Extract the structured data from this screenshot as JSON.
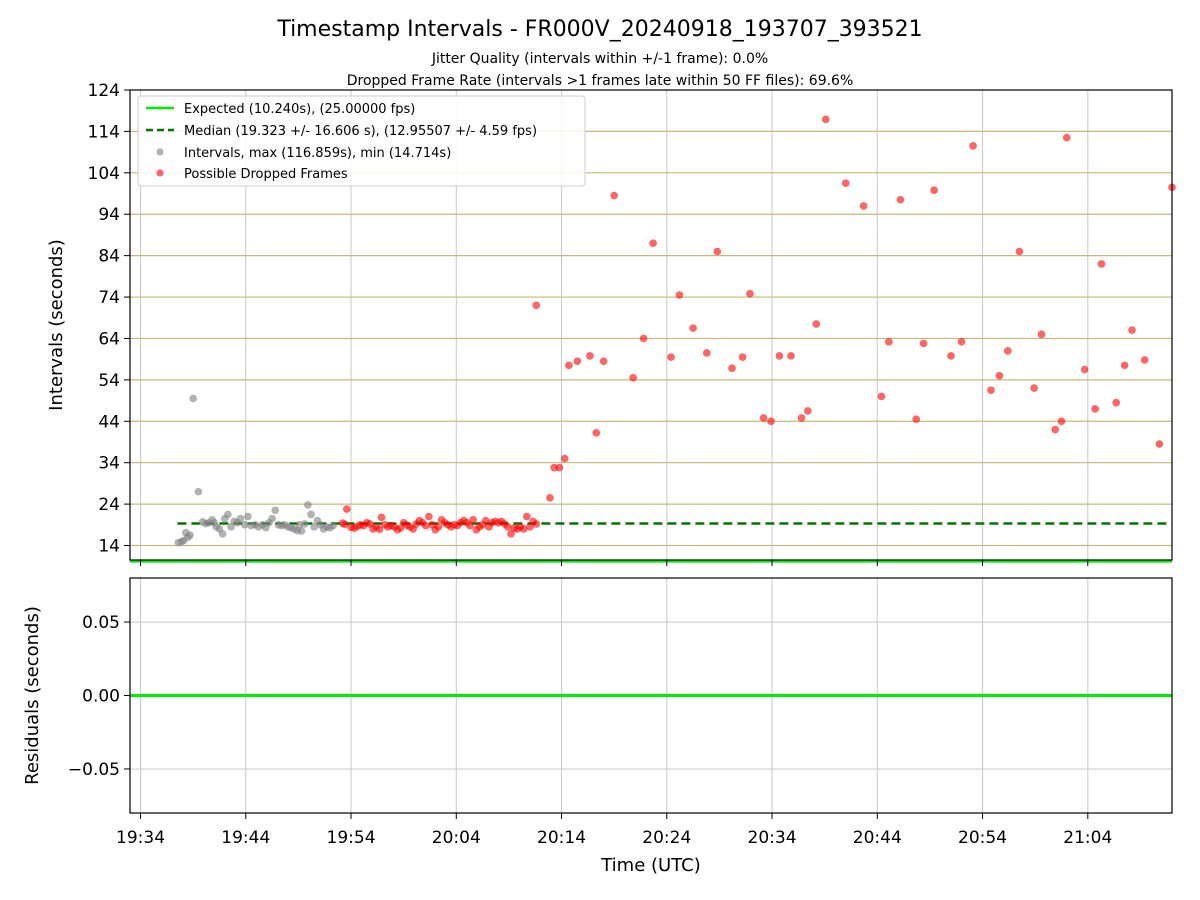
{
  "chart_data": [
    {
      "type": "scatter",
      "title": "Timestamp Intervals - FR000V_20240918_193707_393521",
      "subtitle_1": "Jitter Quality (intervals within +/-1 frame): 0.0%",
      "subtitle_2": "Dropped Frame Rate (intervals >1 frames late within 50 FF files): 69.6%",
      "xlabel": "",
      "ylabel": "Intervals (seconds)",
      "x_unit": "minutes since 19:34 UTC",
      "xlim": [
        -1,
        98
      ],
      "ylim": [
        10.5,
        124
      ],
      "yticks": [
        14,
        24,
        34,
        44,
        54,
        64,
        74,
        84,
        94,
        104,
        114,
        124
      ],
      "hlines_color": "#c8b878",
      "grid": "vertical",
      "legend_position": "top-left",
      "expected_line": {
        "y": 10.24,
        "color": "#00ee00",
        "label": "Expected (10.240s), (25.00000 fps)"
      },
      "median_line": {
        "y": 19.323,
        "color": "#007700",
        "label": "Median (19.323 +/- 16.606 s), (12.95507 +/- 4.59 fps)",
        "x_start": 3.5
      },
      "series": [
        {
          "name": "Intervals, max (116.859s), min (14.714s)",
          "color": "#808080",
          "points": [
            [
              3.6,
              14.7
            ],
            [
              3.9,
              14.9
            ],
            [
              4.1,
              15.2
            ],
            [
              4.3,
              17.1
            ],
            [
              4.5,
              16.0
            ],
            [
              4.7,
              16.5
            ],
            [
              5.0,
              49.5
            ],
            [
              5.5,
              27.0
            ],
            [
              5.9,
              19.7
            ],
            [
              6.2,
              19.3
            ],
            [
              6.5,
              19.5
            ],
            [
              6.8,
              20.2
            ],
            [
              7.0,
              19.5
            ],
            [
              7.2,
              18.5
            ],
            [
              7.5,
              18.0
            ],
            [
              7.8,
              16.8
            ],
            [
              8.0,
              20.5
            ],
            [
              8.3,
              21.5
            ],
            [
              8.6,
              18.5
            ],
            [
              8.9,
              19.8
            ],
            [
              9.2,
              19.5
            ],
            [
              9.5,
              20.5
            ],
            [
              9.9,
              19.0
            ],
            [
              10.2,
              21.0
            ],
            [
              10.5,
              18.8
            ],
            [
              10.9,
              19.0
            ],
            [
              11.2,
              18.5
            ],
            [
              11.6,
              19.0
            ],
            [
              11.9,
              18.3
            ],
            [
              12.2,
              19.5
            ],
            [
              12.5,
              20.5
            ],
            [
              12.8,
              22.5
            ],
            [
              13.1,
              19.0
            ],
            [
              13.4,
              18.8
            ],
            [
              13.7,
              19.0
            ],
            [
              14.0,
              18.5
            ],
            [
              14.3,
              18.3
            ],
            [
              14.6,
              18.0
            ],
            [
              14.9,
              17.6
            ],
            [
              15.1,
              19.0
            ],
            [
              15.3,
              17.5
            ],
            [
              15.6,
              19.2
            ],
            [
              15.9,
              23.8
            ],
            [
              16.2,
              21.5
            ],
            [
              16.5,
              18.5
            ],
            [
              16.8,
              20.0
            ],
            [
              17.1,
              19.0
            ],
            [
              17.4,
              18.0
            ],
            [
              17.7,
              18.5
            ],
            [
              18.0,
              18.3
            ],
            [
              18.3,
              18.8
            ]
          ]
        },
        {
          "name": "Possible Dropped Frames",
          "color": "#ff0000",
          "points": [
            [
              19.2,
              19.4
            ],
            [
              19.4,
              19.1
            ],
            [
              19.6,
              22.8
            ],
            [
              20.0,
              18.4
            ],
            [
              20.3,
              18.2
            ],
            [
              20.6,
              18.6
            ],
            [
              20.9,
              19.0
            ],
            [
              21.2,
              18.8
            ],
            [
              21.5,
              19.5
            ],
            [
              21.8,
              19.2
            ],
            [
              22.1,
              18.0
            ],
            [
              22.4,
              18.5
            ],
            [
              22.7,
              17.9
            ],
            [
              22.9,
              20.8
            ],
            [
              23.2,
              19.0
            ],
            [
              23.5,
              18.5
            ],
            [
              23.8,
              18.8
            ],
            [
              24.1,
              18.5
            ],
            [
              24.4,
              17.8
            ],
            [
              24.7,
              18.2
            ],
            [
              25.0,
              19.5
            ],
            [
              25.3,
              18.9
            ],
            [
              25.6,
              18.5
            ],
            [
              25.9,
              18.0
            ],
            [
              26.2,
              19.2
            ],
            [
              26.5,
              20.0
            ],
            [
              26.8,
              19.5
            ],
            [
              27.1,
              18.8
            ],
            [
              27.4,
              21.0
            ],
            [
              27.7,
              19.0
            ],
            [
              28.0,
              17.8
            ],
            [
              28.3,
              18.5
            ],
            [
              28.6,
              20.2
            ],
            [
              28.9,
              19.5
            ],
            [
              29.2,
              19.0
            ],
            [
              29.5,
              18.5
            ],
            [
              29.8,
              19.0
            ],
            [
              30.1,
              18.8
            ],
            [
              30.4,
              19.5
            ],
            [
              30.7,
              20.0
            ],
            [
              31.0,
              19.5
            ],
            [
              31.3,
              18.8
            ],
            [
              31.6,
              20.2
            ],
            [
              31.9,
              17.8
            ],
            [
              32.2,
              18.5
            ],
            [
              32.5,
              19.0
            ],
            [
              32.8,
              20.0
            ],
            [
              33.1,
              18.5
            ],
            [
              33.4,
              19.5
            ],
            [
              33.7,
              19.8
            ],
            [
              34.0,
              19.5
            ],
            [
              34.3,
              19.8
            ],
            [
              34.6,
              19.2
            ],
            [
              34.9,
              18.5
            ],
            [
              35.2,
              16.8
            ],
            [
              35.5,
              18.2
            ],
            [
              35.8,
              18.0
            ],
            [
              36.1,
              18.5
            ],
            [
              36.4,
              18.0
            ],
            [
              36.7,
              21.0
            ],
            [
              37.0,
              18.5
            ],
            [
              37.3,
              19.8
            ],
            [
              37.6,
              19.2
            ],
            [
              37.6,
              72.0
            ],
            [
              38.9,
              25.5
            ],
            [
              39.3,
              32.8
            ],
            [
              39.8,
              32.8
            ],
            [
              40.3,
              35.0
            ],
            [
              40.7,
              57.5
            ],
            [
              41.5,
              58.5
            ],
            [
              42.7,
              59.8
            ],
            [
              43.3,
              41.2
            ],
            [
              44.0,
              58.5
            ],
            [
              45.0,
              98.5
            ],
            [
              46.8,
              54.5
            ],
            [
              47.8,
              64.0
            ],
            [
              48.7,
              87.0
            ],
            [
              50.4,
              59.5
            ],
            [
              51.2,
              74.5
            ],
            [
              52.5,
              66.5
            ],
            [
              53.8,
              60.5
            ],
            [
              54.8,
              85.0
            ],
            [
              56.2,
              56.8
            ],
            [
              57.2,
              59.5
            ],
            [
              57.9,
              74.8
            ],
            [
              59.2,
              44.8
            ],
            [
              59.9,
              44.0
            ],
            [
              60.7,
              59.8
            ],
            [
              61.8,
              59.8
            ],
            [
              62.8,
              44.8
            ],
            [
              63.4,
              46.5
            ],
            [
              64.2,
              67.5
            ],
            [
              65.1,
              116.9
            ],
            [
              67.0,
              101.5
            ],
            [
              68.7,
              96.0
            ],
            [
              70.4,
              50.0
            ],
            [
              71.1,
              63.2
            ],
            [
              72.2,
              97.5
            ],
            [
              73.7,
              44.5
            ],
            [
              74.4,
              62.8
            ],
            [
              75.4,
              99.8
            ],
            [
              77.0,
              59.8
            ],
            [
              78.0,
              63.2
            ],
            [
              79.1,
              110.5
            ],
            [
              80.8,
              51.5
            ],
            [
              81.6,
              55.0
            ],
            [
              82.4,
              61.0
            ],
            [
              83.5,
              85.0
            ],
            [
              84.9,
              52.0
            ],
            [
              85.6,
              65.0
            ],
            [
              86.9,
              42.0
            ],
            [
              87.5,
              44.0
            ],
            [
              88.0,
              112.5
            ],
            [
              89.7,
              56.5
            ],
            [
              90.7,
              47.0
            ],
            [
              91.3,
              82.0
            ],
            [
              92.7,
              48.5
            ],
            [
              93.5,
              57.5
            ],
            [
              94.2,
              66.0
            ],
            [
              95.4,
              58.8
            ],
            [
              96.8,
              38.5
            ],
            [
              98.0,
              100.5
            ]
          ]
        }
      ],
      "legend": {
        "expected": "Expected (10.240s), (25.00000 fps)",
        "median": "Median (19.323 +/- 16.606 s), (12.95507 +/- 4.59 fps)",
        "intervals": "Intervals, max (116.859s), min (14.714s)",
        "dropped": "Possible Dropped Frames"
      }
    },
    {
      "type": "line",
      "title": "",
      "xlabel": "Time (UTC)",
      "ylabel": "Residuals (seconds)",
      "xlim": [
        -1,
        98
      ],
      "ylim": [
        -0.08,
        0.08
      ],
      "yticks": [
        0.05,
        0.0,
        -0.05
      ],
      "ytick_labels": [
        "0.05",
        "0.00",
        "−0.05"
      ],
      "xticks": [
        0,
        10,
        20,
        30,
        40,
        50,
        60,
        70,
        80,
        90
      ],
      "xtick_labels": [
        "19:34",
        "19:44",
        "19:54",
        "20:04",
        "20:14",
        "20:24",
        "20:34",
        "20:44",
        "20:54",
        "21:04"
      ],
      "grid": "both",
      "series": [
        {
          "values": [
            0,
            0
          ],
          "color": "#00ee00"
        }
      ]
    }
  ]
}
